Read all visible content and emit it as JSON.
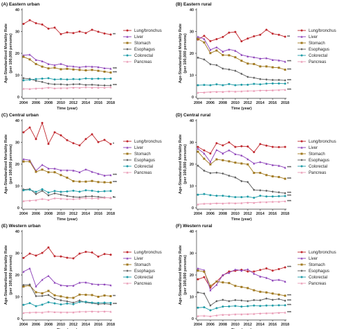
{
  "figure": {
    "shared": {
      "ylabel": "Age-Standardized Mortality Rate",
      "ylabel_unit": "(per 100,000 persons)",
      "xlabel": "Time (year)",
      "legend": [
        "Lung/bronchus",
        "Liver",
        "Stomach",
        "Esophagus",
        "Colorectal",
        "Pancreas"
      ],
      "colors": [
        "#c0272d",
        "#8b3fb8",
        "#a0781e",
        "#5a5a5a",
        "#1f9ca7",
        "#e99ab5"
      ],
      "x_ticks": [
        "2004",
        "2006",
        "2008",
        "2010",
        "2012",
        "2014",
        "2016",
        "2018"
      ],
      "y_ticks": [
        "0",
        "10",
        "20",
        "30",
        "40"
      ]
    }
  },
  "chart_data": [
    {
      "type": "line",
      "title": "(A) Eastern urban",
      "x": [
        2004,
        2005,
        2006,
        2007,
        2008,
        2009,
        2010,
        2011,
        2012,
        2013,
        2014,
        2015,
        2016,
        2017,
        2018
      ],
      "ylim": [
        0,
        40
      ],
      "series": [
        {
          "name": "Lung/bronchus",
          "values": [
            33.5,
            35.2,
            33.8,
            33.2,
            31.3,
            31.8,
            28.8,
            29.6,
            29.3,
            30.0,
            29.3,
            30.8,
            29.9,
            29.1,
            28.6
          ],
          "sig": "**"
        },
        {
          "name": "Liver",
          "values": [
            19.1,
            19.4,
            17.0,
            16.4,
            15.1,
            14.6,
            15.2,
            14.2,
            14.0,
            13.6,
            14.0,
            13.9,
            13.7,
            13.2,
            13.0
          ],
          "sig": "***"
        },
        {
          "name": "Stomach",
          "values": [
            18.4,
            17.2,
            15.1,
            13.9,
            13.1,
            13.4,
            12.7,
            12.9,
            12.6,
            12.4,
            12.2,
            12.4,
            12.0,
            11.6,
            11.2
          ],
          "sig": "***"
        },
        {
          "name": "Esophagus",
          "values": [
            8.6,
            8.3,
            7.4,
            6.9,
            6.1,
            5.8,
            5.8,
            5.6,
            5.8,
            5.9,
            5.5,
            5.6,
            5.4,
            5.3,
            5.3
          ],
          "sig": "***"
        },
        {
          "name": "Colorectal",
          "values": [
            7.6,
            7.9,
            8.2,
            8.4,
            8.6,
            8.0,
            8.2,
            8.0,
            8.2,
            8.1,
            8.5,
            8.3,
            8.4,
            8.3,
            8.4
          ],
          "sig": ""
        },
        {
          "name": "Pancreas",
          "values": [
            3.8,
            3.7,
            3.9,
            4.0,
            4.3,
            4.0,
            4.1,
            4.1,
            4.3,
            4.2,
            4.5,
            4.3,
            4.3,
            4.3,
            4.5
          ],
          "sig": ""
        }
      ]
    },
    {
      "type": "line",
      "title": "(B) Eastern rural",
      "x": [
        2004,
        2005,
        2006,
        2007,
        2008,
        2009,
        2010,
        2011,
        2012,
        2013,
        2014,
        2015,
        2016,
        2017,
        2018
      ],
      "ylim": [
        0,
        40
      ],
      "series": [
        {
          "name": "Lung/bronchus",
          "values": [
            26.3,
            28.0,
            25.6,
            26.5,
            27.5,
            29.5,
            29.8,
            25.5,
            26.8,
            27.8,
            28.5,
            30.8,
            29.0,
            28.5,
            27.6
          ],
          "sig": "**"
        },
        {
          "name": "Liver",
          "values": [
            27.6,
            26.6,
            21.6,
            22.8,
            20.8,
            21.8,
            21.2,
            19.3,
            18.6,
            18.2,
            17.6,
            17.8,
            17.0,
            16.8,
            16.2
          ],
          "sig": "***"
        },
        {
          "name": "Stomach",
          "values": [
            26.6,
            25.0,
            20.1,
            21.3,
            19.2,
            19.1,
            18.2,
            16.6,
            15.3,
            15.1,
            14.0,
            14.0,
            13.6,
            13.4,
            12.5
          ],
          "sig": "***"
        },
        {
          "name": "Esophagus",
          "values": [
            18.0,
            17.2,
            15.0,
            14.6,
            13.0,
            12.6,
            12.0,
            10.6,
            9.2,
            8.8,
            8.2,
            8.0,
            7.8,
            7.8,
            7.6
          ],
          "sig": "***"
        },
        {
          "name": "Colorectal",
          "values": [
            5.4,
            5.5,
            5.4,
            5.8,
            5.4,
            5.9,
            5.4,
            5.6,
            5.6,
            6.0,
            5.8,
            6.1,
            6.2,
            6.2,
            6.1
          ],
          "sig": "*"
        },
        {
          "name": "Pancreas",
          "values": [
            2.0,
            2.1,
            2.3,
            2.4,
            2.4,
            2.6,
            2.5,
            2.6,
            2.8,
            2.8,
            3.0,
            3.0,
            3.1,
            3.2,
            3.3
          ],
          "sig": "***"
        }
      ]
    },
    {
      "type": "line",
      "title": "(C) Central urban",
      "x": [
        2004,
        2005,
        2006,
        2007,
        2008,
        2009,
        2010,
        2011,
        2012,
        2013,
        2014,
        2015,
        2016,
        2017,
        2018
      ],
      "ylim": [
        0,
        40
      ],
      "series": [
        {
          "name": "Lung/bronchus",
          "values": [
            34.6,
            36.8,
            31.5,
            38.9,
            29.3,
            34.6,
            33.2,
            31.0,
            29.6,
            28.6,
            31.5,
            33.7,
            30.1,
            31.1,
            29.2
          ],
          "sig": "*"
        },
        {
          "name": "Liver",
          "values": [
            22.3,
            21.8,
            17.0,
            19.7,
            18.0,
            18.0,
            17.2,
            17.2,
            17.1,
            16.3,
            17.6,
            16.5,
            15.6,
            14.8,
            15.0
          ],
          "sig": "***"
        },
        {
          "name": "Stomach",
          "values": [
            21.2,
            21.2,
            16.5,
            17.5,
            16.3,
            16.3,
            15.0,
            13.8,
            12.2,
            12.0,
            12.0,
            12.3,
            11.8,
            11.7,
            11.6
          ],
          "sig": "***"
        },
        {
          "name": "Esophagus",
          "values": [
            8.4,
            8.6,
            6.3,
            7.8,
            5.7,
            6.6,
            6.0,
            5.4,
            5.0,
            4.8,
            5.2,
            5.3,
            5.0,
            4.7,
            4.5
          ],
          "sig": "**"
        },
        {
          "name": "Colorectal",
          "values": [
            8.0,
            8.3,
            7.3,
            8.5,
            7.0,
            7.7,
            7.3,
            7.5,
            7.8,
            7.4,
            8.0,
            7.8,
            7.4,
            7.6,
            7.7
          ],
          "sig": ""
        },
        {
          "name": "Pancreas",
          "values": [
            3.1,
            3.3,
            3.5,
            4.1,
            3.6,
            4.4,
            4.2,
            4.0,
            4.0,
            4.2,
            4.5,
            4.4,
            4.3,
            4.6,
            4.6
          ],
          "sig": "*"
        }
      ]
    },
    {
      "type": "line",
      "title": "(D) Central rural",
      "x": [
        2004,
        2005,
        2006,
        2007,
        2008,
        2009,
        2010,
        2011,
        2012,
        2013,
        2014,
        2015,
        2016,
        2017,
        2018
      ],
      "ylim": [
        0,
        40
      ],
      "series": [
        {
          "name": "Lung/bronchus",
          "values": [
            27.9,
            26.3,
            24.9,
            29.6,
            28.6,
            30.0,
            27.9,
            28.2,
            28.1,
            25.5,
            29.2,
            28.5,
            27.9,
            27.8,
            27.9
          ],
          "sig": ""
        },
        {
          "name": "Liver",
          "values": [
            27.1,
            24.9,
            21.0,
            26.5,
            24.9,
            26.4,
            24.6,
            24.0,
            22.3,
            20.3,
            21.0,
            20.2,
            19.6,
            19.3,
            18.4
          ],
          "sig": "***"
        },
        {
          "name": "Stomach",
          "values": [
            25.7,
            22.5,
            19.9,
            22.2,
            21.8,
            21.3,
            20.7,
            20.3,
            19.9,
            16.0,
            16.0,
            15.0,
            14.4,
            14.1,
            13.3
          ],
          "sig": "***"
        },
        {
          "name": "Esophagus",
          "values": [
            19.3,
            17.0,
            15.9,
            16.1,
            15.7,
            14.7,
            13.9,
            12.2,
            11.8,
            8.2,
            8.0,
            7.8,
            7.4,
            7.1,
            6.7
          ],
          "sig": "***"
        },
        {
          "name": "Colorectal",
          "values": [
            6.0,
            6.3,
            5.8,
            5.5,
            5.5,
            5.2,
            4.9,
            4.9,
            5.1,
            4.6,
            5.5,
            5.2,
            5.2,
            5.3,
            5.4
          ],
          "sig": "***"
        },
        {
          "name": "Pancreas",
          "values": [
            1.6,
            1.9,
            1.9,
            2.1,
            2.0,
            2.2,
            2.1,
            2.2,
            2.4,
            2.3,
            2.6,
            2.6,
            2.8,
            2.8,
            3.0
          ],
          "sig": "***"
        }
      ]
    },
    {
      "type": "line",
      "title": "(E) Western urban",
      "x": [
        2004,
        2005,
        2006,
        2007,
        2008,
        2009,
        2010,
        2011,
        2012,
        2013,
        2014,
        2015,
        2016,
        2017,
        2018
      ],
      "ylim": [
        0,
        40
      ],
      "series": [
        {
          "name": "Lung/bronchus",
          "values": [
            27.8,
            29.8,
            28.9,
            30.1,
            32.6,
            28.6,
            28.5,
            27.9,
            27.6,
            29.8,
            30.6,
            30.3,
            28.4,
            29.6,
            29.3
          ],
          "sig": ""
        },
        {
          "name": "Liver",
          "values": [
            21.5,
            23.0,
            14.8,
            17.8,
            19.6,
            16.5,
            15.3,
            15.0,
            15.1,
            16.5,
            16.6,
            15.9,
            15.6,
            15.7,
            15.3
          ],
          "sig": ""
        },
        {
          "name": "Stomach",
          "values": [
            14.7,
            15.2,
            12.1,
            11.6,
            12.7,
            10.7,
            10.2,
            9.6,
            9.5,
            11.0,
            10.9,
            10.8,
            10.0,
            10.6,
            10.3
          ],
          "sig": "**"
        },
        {
          "name": "Esophagus",
          "values": [
            15.4,
            15.6,
            10.3,
            10.4,
            10.8,
            9.1,
            8.4,
            7.9,
            7.3,
            8.3,
            7.4,
            7.1,
            6.6,
            6.8,
            6.5
          ],
          "sig": "***"
        },
        {
          "name": "Colorectal",
          "values": [
            6.3,
            7.1,
            5.7,
            6.4,
            7.5,
            7.0,
            6.5,
            6.9,
            6.6,
            7.6,
            7.7,
            7.3,
            7.2,
            7.3,
            7.2
          ],
          "sig": ""
        },
        {
          "name": "Pancreas",
          "values": [
            2.6,
            2.8,
            2.9,
            2.8,
            3.2,
            3.0,
            2.9,
            2.9,
            2.9,
            3.2,
            3.2,
            3.3,
            3.2,
            3.3,
            3.2
          ],
          "sig": ""
        }
      ]
    },
    {
      "type": "line",
      "title": "(F) Western rural",
      "x": [
        2004,
        2005,
        2006,
        2007,
        2008,
        2009,
        2010,
        2011,
        2012,
        2013,
        2014,
        2015,
        2016,
        2017,
        2018
      ],
      "ylim": [
        0,
        40
      ],
      "series": [
        {
          "name": "Lung/bronchus",
          "values": [
            18.0,
            19.0,
            14.2,
            17.0,
            19.8,
            21.6,
            21.9,
            22.4,
            21.6,
            21.6,
            22.3,
            23.0,
            22.0,
            22.7,
            23.5
          ],
          "sig": "***"
        },
        {
          "name": "Liver",
          "values": [
            23.0,
            22.2,
            13.0,
            15.5,
            20.0,
            21.0,
            22.5,
            22.0,
            22.6,
            20.6,
            19.3,
            18.7,
            17.5,
            17.8,
            17.0
          ],
          "sig": ""
        },
        {
          "name": "Stomach",
          "values": [
            22.0,
            21.5,
            15.0,
            17.0,
            16.6,
            16.3,
            15.0,
            14.5,
            14.0,
            13.0,
            12.3,
            12.0,
            11.5,
            11.0,
            10.5
          ],
          "sig": "***"
        },
        {
          "name": "Esophagus",
          "values": [
            12.0,
            11.5,
            6.0,
            8.0,
            8.6,
            8.0,
            8.5,
            8.3,
            8.0,
            8.5,
            8.4,
            9.2,
            8.6,
            9.0,
            8.2
          ],
          "sig": "***"
        },
        {
          "name": "Colorectal",
          "values": [
            5.0,
            5.2,
            3.8,
            4.8,
            5.5,
            5.6,
            5.8,
            5.5,
            5.7,
            6.0,
            5.8,
            6.0,
            6.0,
            6.1,
            6.1
          ],
          "sig": "***"
        },
        {
          "name": "Pancreas",
          "values": [
            1.2,
            1.3,
            1.1,
            1.5,
            1.8,
            1.8,
            2.0,
            2.0,
            2.1,
            2.2,
            2.4,
            2.5,
            2.5,
            2.7,
            2.8
          ],
          "sig": "***"
        }
      ]
    }
  ]
}
